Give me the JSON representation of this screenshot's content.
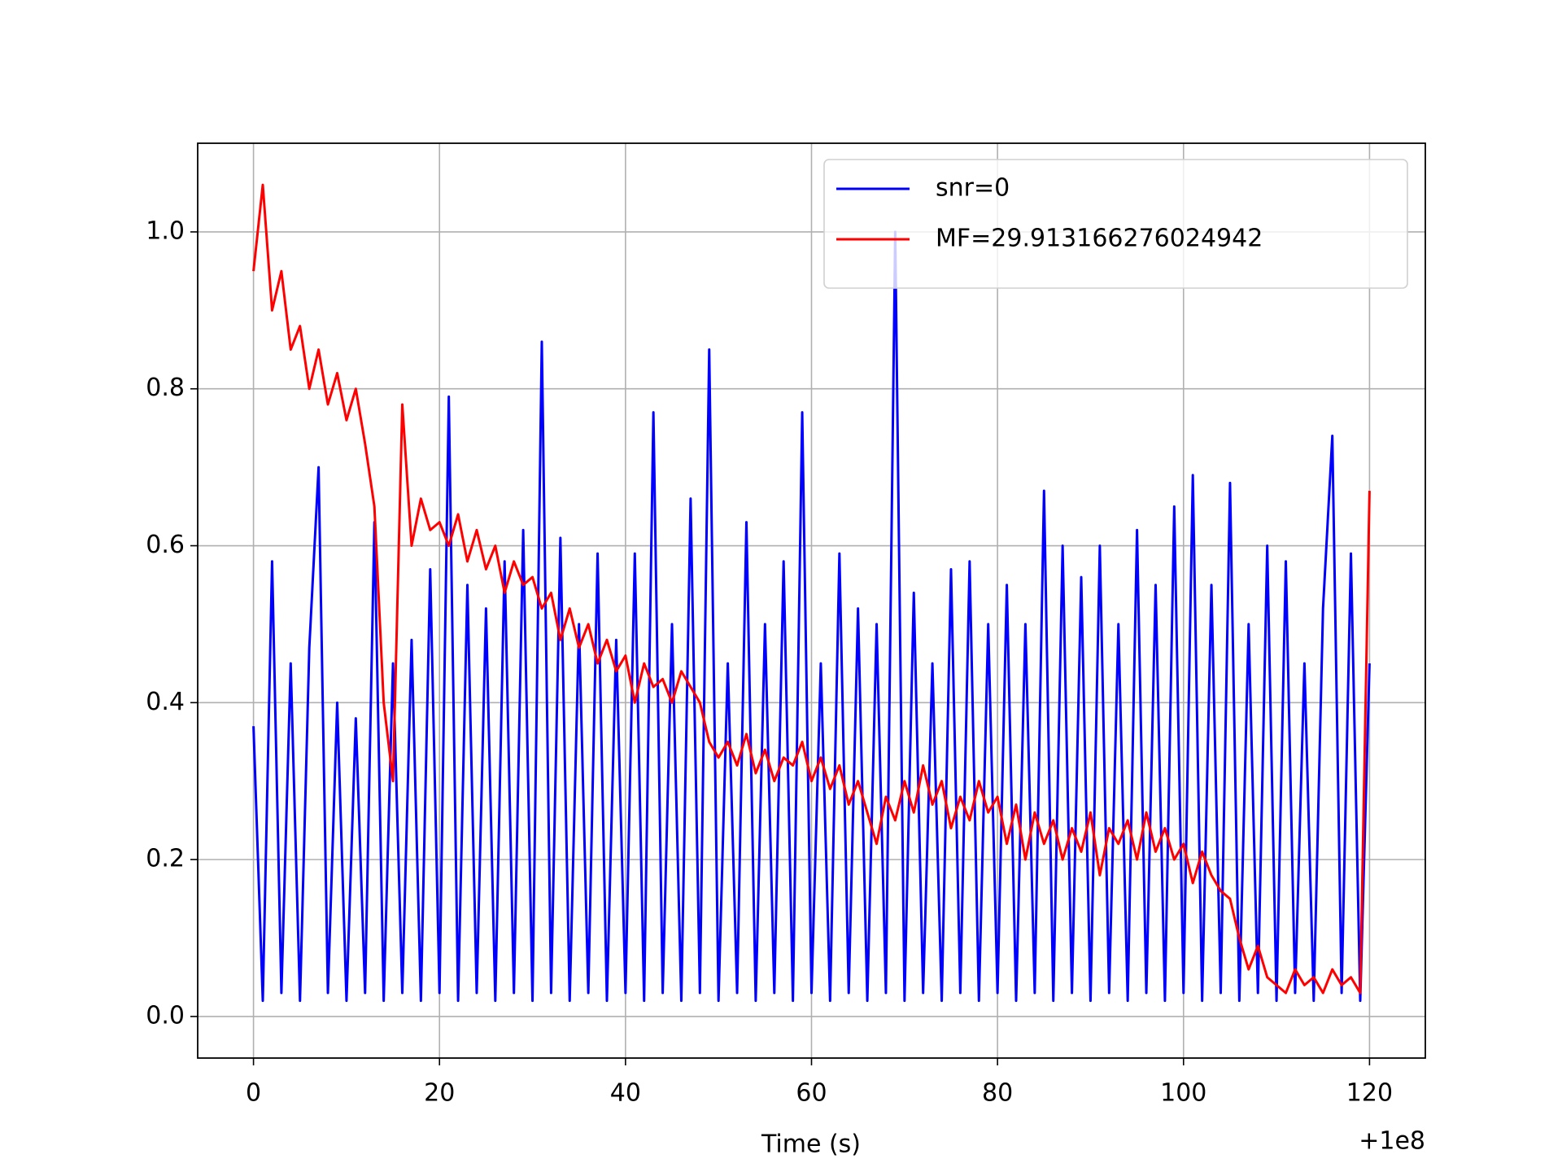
{
  "chart_data": {
    "type": "line",
    "xlabel": "Time (s)",
    "x_offset_label": "+1e8",
    "x": [
      0,
      1,
      2,
      3,
      4,
      5,
      6,
      7,
      8,
      9,
      10,
      11,
      12,
      13,
      14,
      15,
      16,
      17,
      18,
      19,
      20,
      21,
      22,
      23,
      24,
      25,
      26,
      27,
      28,
      29,
      30,
      31,
      32,
      33,
      34,
      35,
      36,
      37,
      38,
      39,
      40,
      41,
      42,
      43,
      44,
      45,
      46,
      47,
      48,
      49,
      50,
      51,
      52,
      53,
      54,
      55,
      56,
      57,
      58,
      59,
      60,
      61,
      62,
      63,
      64,
      65,
      66,
      67,
      68,
      69,
      70,
      71,
      72,
      73,
      74,
      75,
      76,
      77,
      78,
      79,
      80,
      81,
      82,
      83,
      84,
      85,
      86,
      87,
      88,
      89,
      90,
      91,
      92,
      93,
      94,
      95,
      96,
      97,
      98,
      99,
      100,
      101,
      102,
      103,
      104,
      105,
      106,
      107,
      108,
      109,
      110,
      111,
      112,
      113,
      114,
      115,
      116,
      117,
      118,
      119,
      120
    ],
    "series": [
      {
        "name": "snr=0",
        "color": "#0000ff",
        "values": [
          0.37,
          0.02,
          0.58,
          0.03,
          0.45,
          0.02,
          0.47,
          0.7,
          0.03,
          0.4,
          0.02,
          0.38,
          0.03,
          0.63,
          0.02,
          0.45,
          0.03,
          0.48,
          0.02,
          0.57,
          0.03,
          0.79,
          0.02,
          0.55,
          0.03,
          0.52,
          0.02,
          0.58,
          0.03,
          0.62,
          0.02,
          0.86,
          0.03,
          0.61,
          0.02,
          0.5,
          0.03,
          0.59,
          0.02,
          0.48,
          0.03,
          0.59,
          0.02,
          0.77,
          0.03,
          0.5,
          0.02,
          0.66,
          0.03,
          0.85,
          0.02,
          0.45,
          0.03,
          0.63,
          0.02,
          0.5,
          0.03,
          0.58,
          0.02,
          0.77,
          0.03,
          0.45,
          0.02,
          0.59,
          0.03,
          0.52,
          0.02,
          0.5,
          0.03,
          1.0,
          0.02,
          0.54,
          0.03,
          0.45,
          0.02,
          0.57,
          0.03,
          0.58,
          0.02,
          0.5,
          0.03,
          0.55,
          0.02,
          0.5,
          0.03,
          0.67,
          0.02,
          0.6,
          0.03,
          0.56,
          0.02,
          0.6,
          0.03,
          0.5,
          0.02,
          0.62,
          0.03,
          0.55,
          0.02,
          0.65,
          0.03,
          0.69,
          0.02,
          0.55,
          0.03,
          0.68,
          0.02,
          0.5,
          0.03,
          0.6,
          0.02,
          0.58,
          0.03,
          0.45,
          0.02,
          0.52,
          0.74,
          0.03,
          0.59,
          0.02,
          0.45
        ]
      },
      {
        "name": "MF=29.913166276024942",
        "color": "#ff0000",
        "values": [
          0.95,
          1.06,
          0.9,
          0.95,
          0.85,
          0.88,
          0.8,
          0.85,
          0.78,
          0.82,
          0.76,
          0.8,
          0.73,
          0.65,
          0.4,
          0.3,
          0.78,
          0.6,
          0.66,
          0.62,
          0.63,
          0.6,
          0.64,
          0.58,
          0.62,
          0.57,
          0.6,
          0.54,
          0.58,
          0.55,
          0.56,
          0.52,
          0.54,
          0.48,
          0.52,
          0.47,
          0.5,
          0.45,
          0.48,
          0.44,
          0.46,
          0.4,
          0.45,
          0.42,
          0.43,
          0.4,
          0.44,
          0.42,
          0.4,
          0.35,
          0.33,
          0.35,
          0.32,
          0.36,
          0.31,
          0.34,
          0.3,
          0.33,
          0.32,
          0.35,
          0.3,
          0.33,
          0.29,
          0.32,
          0.27,
          0.3,
          0.26,
          0.22,
          0.28,
          0.25,
          0.3,
          0.26,
          0.32,
          0.27,
          0.3,
          0.24,
          0.28,
          0.25,
          0.3,
          0.26,
          0.28,
          0.22,
          0.27,
          0.2,
          0.26,
          0.22,
          0.25,
          0.2,
          0.24,
          0.21,
          0.26,
          0.18,
          0.24,
          0.22,
          0.25,
          0.2,
          0.26,
          0.21,
          0.24,
          0.2,
          0.22,
          0.17,
          0.21,
          0.18,
          0.16,
          0.15,
          0.1,
          0.06,
          0.09,
          0.05,
          0.04,
          0.03,
          0.06,
          0.04,
          0.05,
          0.03,
          0.06,
          0.04,
          0.05,
          0.03,
          0.67
        ]
      }
    ],
    "xlim": [
      -6,
      126
    ],
    "xticks": [
      0,
      20,
      40,
      60,
      80,
      100,
      120
    ],
    "ylim": [
      -0.053,
      1.113
    ],
    "yticks": [
      {
        "value": 0,
        "label": "0.0"
      },
      {
        "value": 0.2,
        "label": "0.2"
      },
      {
        "value": 0.4,
        "label": "0.4"
      },
      {
        "value": 0.6,
        "label": "0.6"
      },
      {
        "value": 0.8,
        "label": "0.8"
      },
      {
        "value": 1,
        "label": "1.0"
      }
    ],
    "grid": true,
    "legend": "upper right"
  }
}
